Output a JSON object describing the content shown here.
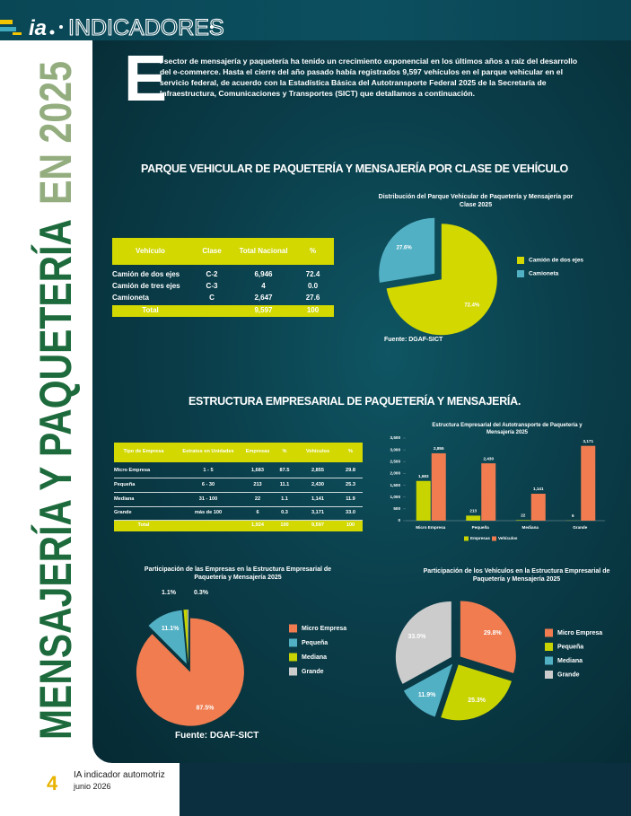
{
  "header": {
    "logo": "ia",
    "section": "INDICADORES"
  },
  "side_title": {
    "main": "MENSAJERÍA Y PAQUETERÍA",
    "year": "EN 2025"
  },
  "intro": {
    "drop_cap": "E",
    "text": "l sector de mensajería y paquetería ha tenido un crecimiento exponencial en los últimos años a raíz del desarrollo del e-commerce. Hasta el cierre del año pasado había registrados 9,597 vehículos en el parque vehicular en el servicio federal, de acuerdo con la Estadística Básica del Autotransporte Federal 2025 de la Secretaría de Infraestructura, Comunicaciones y Transportes (SICT) que detallamos a continuación."
  },
  "sections": [
    "PARQUE VEHICULAR DE PAQUETERÍA Y MENSAJERÍA POR CLASE DE VEHÍCULO",
    "ESTRUCTURA EMPRESARIAL DE PAQUETERÍA Y MENSAJERÍA."
  ],
  "tables": [
    {
      "header": [
        "Vehículo",
        "Clase",
        "Total Nacional",
        "%"
      ],
      "rows": [
        [
          "Camión de dos ejes",
          "C-2",
          "6,946",
          "72.4"
        ],
        [
          "Camión de tres ejes",
          "C-3",
          "4",
          "0.0"
        ],
        [
          "Camioneta",
          "C",
          "2,647",
          "27.6"
        ]
      ],
      "total": [
        "Total",
        "9,597",
        "100"
      ]
    },
    {
      "header": [
        "Tipo de Empresa",
        "Estratos en Unidades",
        "Empresas",
        "%",
        "Vehículos",
        "%"
      ],
      "rows": [
        [
          "Micro Empresa",
          "1 - 5",
          "1,683",
          "87.5",
          "2,855",
          "29.8"
        ],
        [
          "Pequeña",
          "6 - 30",
          "213",
          "11.1",
          "2,430",
          "25.3"
        ],
        [
          "Mediana",
          "31 - 100",
          "22",
          "1.1",
          "1,141",
          "11.9"
        ],
        [
          "Grande",
          "más de 100",
          "6",
          "0.3",
          "3,171",
          "33.0"
        ]
      ],
      "total": [
        "Total",
        "1,924",
        "100",
        "9,597",
        "100"
      ]
    }
  ],
  "chart_data": [
    {
      "type": "pie",
      "title": "Distribución del Parque Vehicular de Paquetería y Mensajería por Clase 2025",
      "categories": [
        "Camión de dos ejes",
        "Camioneta"
      ],
      "values": [
        72.4,
        27.6
      ],
      "value_labels": [
        "72.4%",
        "27.6%"
      ],
      "colors": [
        "#d2d800",
        "#52b0c4"
      ],
      "source": "Fuente: DGAF-SICT"
    },
    {
      "type": "bar",
      "title": "Estructura Empresarial del Autotransporte de Paquetería y Mensajería 2025",
      "categories": [
        "Micro Empresa",
        "Pequeña",
        "Mediana",
        "Grande"
      ],
      "series": [
        {
          "name": "Empresas",
          "color": "#c8d400",
          "values": [
            1683,
            213,
            22,
            6
          ],
          "value_labels": [
            "1,683",
            "213",
            "22",
            "6"
          ]
        },
        {
          "name": "Vehículos",
          "color": "#f07c50",
          "values": [
            2855,
            2430,
            1141,
            3171
          ],
          "value_labels": [
            "2,855",
            "2,430",
            "1,141",
            "3,171"
          ]
        }
      ],
      "ylim": [
        0,
        3500
      ],
      "yticks": [
        0,
        500,
        {
          "value": 1000,
          "label": "1,000"
        },
        {
          "value": 1500,
          "label": "1,500"
        },
        {
          "value": 2000,
          "label": "2,000"
        },
        {
          "value": 2500,
          "label": "2,500"
        },
        {
          "value": 3000,
          "label": "3,000"
        },
        {
          "value": 3500,
          "label": "3,500"
        }
      ]
    },
    {
      "type": "pie",
      "title": "Participación de las Empresas en la Estructura Empresarial de Paquetería y Mensajería 2025",
      "categories": [
        "Micro Empresa",
        "Pequeña",
        "Mediana",
        "Grande"
      ],
      "values": [
        87.5,
        11.1,
        1.1,
        0.3
      ],
      "value_labels": [
        "87.5%",
        "11.1%",
        "1.1%",
        "0.3%"
      ],
      "colors": [
        "#f07c50",
        "#52b0c4",
        "#c8d400",
        "#cccccc"
      ],
      "source": "Fuente: DGAF-SICT"
    },
    {
      "type": "pie",
      "title": "Participación de los Vehículos en la Estructura Empresarial de Paquetería y Mensajería 2025",
      "categories": [
        "Micro Empresa",
        "Pequeña",
        "Mediana",
        "Grande"
      ],
      "values": [
        29.8,
        25.3,
        11.9,
        33.0
      ],
      "value_labels": [
        "29.8%",
        "25.3%",
        "11.9%",
        "33.0%"
      ],
      "colors": [
        "#f07c50",
        "#c8d400",
        "#52b0c4",
        "#cccccc"
      ]
    }
  ],
  "footer": {
    "page": "4",
    "magazine": "IA indicador automotriz",
    "date": "junio 2026"
  }
}
